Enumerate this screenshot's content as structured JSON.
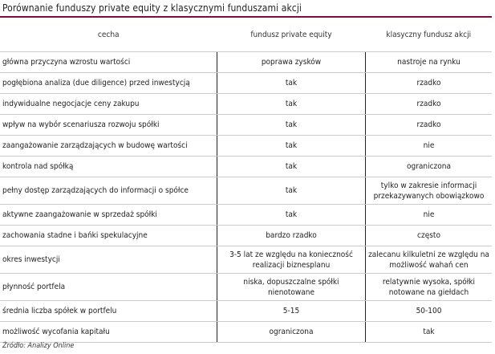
{
  "title": "Porównanie funduszy private equity z klasycznymi funduszami akcji",
  "headers": [
    "cecha",
    "fundusz private equity",
    "klasyczny fundusz akcji"
  ],
  "rows": [
    [
      "główna przyczyna wzrostu wartości",
      "poprawa zysków",
      "nastroje na rynku"
    ],
    [
      "pogłębiona analiza (due diligence) przed inwestycją",
      "tak",
      "rzadko"
    ],
    [
      "indywidualne negocjacje ceny zakupu",
      "tak",
      "rzadko"
    ],
    [
      "wpływ na wybór scenariusza rozwoju spółki",
      "tak",
      "rzadko"
    ],
    [
      "zaangażowanie zarządzających w budowę wartości",
      "tak",
      "nie"
    ],
    [
      "kontrola nad spółką",
      "tak",
      "ograniczona"
    ],
    [
      "pełny dostęp zarządzających do informacji o spółce",
      "tak",
      "tylko w zakresie informacji przekazywanych obowiązkowo"
    ],
    [
      "aktywne zaangażowanie w sprzedaż spółki",
      "tak",
      "nie"
    ],
    [
      "zachowania stadne i bańki spekulacyjne",
      "bardzo rzadko",
      "często"
    ],
    [
      "okres inwestycji",
      "3-5 lat ze względu na konieczność realizacji biznesplanu",
      "zalecanu kilkuletni ze względu na możliwość wahań cen"
    ],
    [
      "płynność portfela",
      "niska, dopuszczalne spółki nienotowane",
      "relatywnie wysoka, spółki notowane na giełdach"
    ],
    [
      "średnia liczba spółek w portfelu",
      "5-15",
      "50-100"
    ],
    [
      "możliwość wycofania kapitału",
      "ograniczona",
      "tak"
    ]
  ],
  "source": "Źródło: Analizy Online",
  "colors": {
    "rule": "#7a1040"
  }
}
